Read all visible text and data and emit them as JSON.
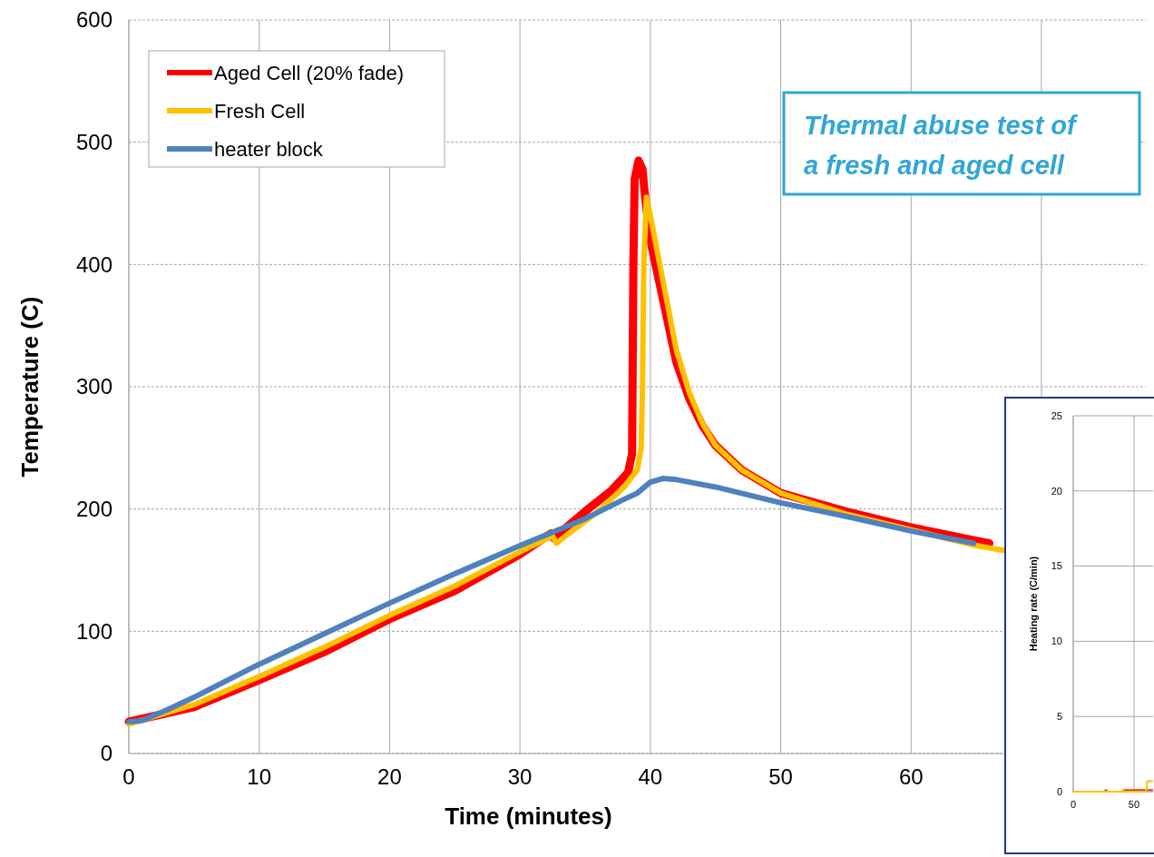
{
  "chart_data": [
    {
      "type": "line",
      "xlabel": "Time (minutes)",
      "ylabel": "Temperature (C)",
      "xlim": [
        0,
        78
      ],
      "xticks": [
        0,
        10,
        20,
        30,
        40,
        50,
        60,
        {
          "value": 70,
          "label": null
        }
      ],
      "ylim": [
        0,
        600
      ],
      "yticks": [
        0,
        100,
        200,
        300,
        400,
        500,
        600
      ],
      "grid": true,
      "legend": "top left",
      "line_style": "solid",
      "marker": "none",
      "annotations": [
        "Thermal abuse test of a fresh and aged cell"
      ],
      "series": [
        {
          "name": "Aged Cell (20% fade)",
          "color": "#ff0000",
          "x": [
            0,
            5,
            10,
            15,
            20,
            25,
            30,
            32.4,
            32.6,
            33,
            35,
            37,
            38.3,
            38.6,
            38.7,
            38.8,
            39.1,
            39.4,
            39.6,
            40,
            41,
            42,
            43,
            44,
            45,
            47,
            50,
            55,
            60,
            65,
            66
          ],
          "values": [
            26,
            38,
            60,
            83,
            110,
            133,
            163,
            180,
            176,
            180,
            198,
            215,
            230,
            245,
            400,
            470,
            485,
            478,
            455,
            420,
            370,
            320,
            290,
            268,
            252,
            232,
            213,
            198,
            185,
            174,
            172
          ]
        },
        {
          "name": "Fresh Cell",
          "color": "#ffc000",
          "x": [
            0,
            5,
            10,
            15,
            20,
            25,
            30,
            32.5,
            32.8,
            34,
            36,
            38,
            39,
            39.3,
            39.4,
            39.5,
            39.7,
            40,
            41,
            42,
            43,
            44,
            45,
            47,
            50,
            55,
            60,
            65,
            67.2
          ],
          "values": [
            24,
            40,
            63,
            87,
            113,
            137,
            165,
            178,
            172,
            182,
            198,
            218,
            232,
            250,
            300,
            400,
            455,
            440,
            385,
            330,
            295,
            270,
            252,
            232,
            213,
            196,
            183,
            170,
            166
          ]
        },
        {
          "name": "heater block",
          "color": "#4f81bd",
          "x": [
            0,
            1,
            3,
            5,
            10,
            15,
            20,
            25,
            30,
            35,
            38,
            39,
            40,
            41,
            42,
            45,
            50,
            55,
            60,
            64.8
          ],
          "values": [
            26,
            27,
            36,
            46,
            73,
            98,
            123,
            147,
            170,
            192,
            208,
            213,
            222,
            225,
            224,
            218,
            205,
            194,
            182,
            172
          ]
        }
      ]
    },
    {
      "type": "line",
      "ylabel": "Heating rate (C/min)",
      "xlim": [
        0,
        66
      ],
      "xticks": [
        0,
        50
      ],
      "ylim": [
        0,
        25
      ],
      "yticks": [
        0,
        5,
        10,
        15,
        20,
        25
      ],
      "grid": true,
      "legend": false,
      "line_style": "solid",
      "marker": "none",
      "series": [
        {
          "color": "#e03c31",
          "x": [
            0,
            25,
            27,
            29,
            40,
            42,
            65
          ],
          "values": [
            0,
            0,
            0.1,
            0,
            0,
            0.1,
            0.1
          ]
        },
        {
          "color": "#ffc000",
          "x": [
            0,
            40,
            41,
            42,
            60,
            61,
            63,
            65
          ],
          "values": [
            0,
            0,
            0.1,
            0,
            0,
            0.7,
            0.7,
            0.7
          ]
        }
      ]
    }
  ]
}
